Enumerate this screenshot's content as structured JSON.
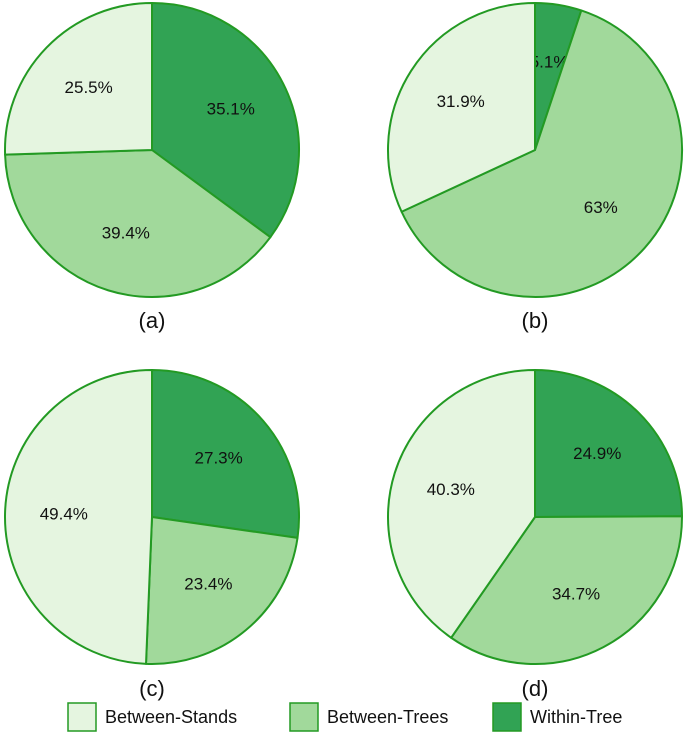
{
  "chart_data": [
    {
      "type": "pie",
      "title": "(a)",
      "values": [
        25.5,
        39.4,
        35.1
      ],
      "value_labels": [
        "25.5%",
        "39.4%",
        "35.1%"
      ]
    },
    {
      "type": "pie",
      "title": "(b)",
      "values": [
        31.9,
        63,
        5.1
      ],
      "value_labels": [
        "31.9%",
        "63%",
        "5.1%"
      ]
    },
    {
      "type": "pie",
      "title": "(c)",
      "values": [
        49.4,
        23.4,
        27.3
      ],
      "value_labels": [
        "49.4%",
        "23.4%",
        "27.3%"
      ]
    },
    {
      "type": "pie",
      "title": "(d)",
      "values": [
        40.3,
        34.7,
        24.9
      ],
      "value_labels": [
        "40.3%",
        "34.7%",
        "24.9%"
      ]
    }
  ],
  "legend": [
    {
      "name": "Between-Stands",
      "color": "#e5f5e0"
    },
    {
      "name": "Between-Trees",
      "color": "#a1d99b"
    },
    {
      "name": "Within-Tree",
      "color": "#31a354"
    }
  ]
}
